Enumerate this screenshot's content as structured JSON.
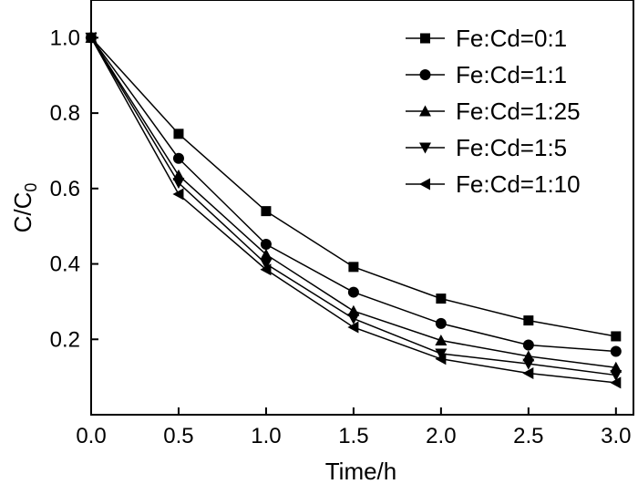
{
  "chart_data": {
    "type": "line",
    "xlabel": "Time/h",
    "ylabel": "C/C",
    "ylabel_subscript": "0",
    "xlim": [
      0,
      3.1
    ],
    "ylim": [
      0,
      1.1
    ],
    "x_ticks": [
      "0.0",
      "0.5",
      "1.0",
      "1.5",
      "2.0",
      "2.5",
      "3.0"
    ],
    "y_ticks": [
      "0.2",
      "0.4",
      "0.6",
      "0.8",
      "1.0"
    ],
    "grid": false,
    "legend_position": "top-right",
    "x": [
      0,
      0.5,
      1.0,
      1.5,
      2.0,
      2.5,
      3.0
    ],
    "series": [
      {
        "name": "Fe:Cd=0:1",
        "marker": "square",
        "values": [
          1.0,
          0.745,
          0.54,
          0.392,
          0.308,
          0.25,
          0.208
        ]
      },
      {
        "name": "Fe:Cd=1:1",
        "marker": "circle",
        "values": [
          1.0,
          0.68,
          0.452,
          0.325,
          0.242,
          0.185,
          0.168
        ]
      },
      {
        "name": "Fe:Cd=1:25",
        "marker": "triangle-up",
        "values": [
          1.0,
          0.635,
          0.425,
          0.275,
          0.197,
          0.155,
          0.125
        ]
      },
      {
        "name": "Fe:Cd=1:5",
        "marker": "triangle-down",
        "values": [
          1.0,
          0.615,
          0.4,
          0.255,
          0.162,
          0.135,
          0.105
        ]
      },
      {
        "name": "Fe:Cd=1:10",
        "marker": "triangle-left",
        "values": [
          1.0,
          0.585,
          0.385,
          0.232,
          0.148,
          0.11,
          0.085
        ]
      }
    ]
  }
}
